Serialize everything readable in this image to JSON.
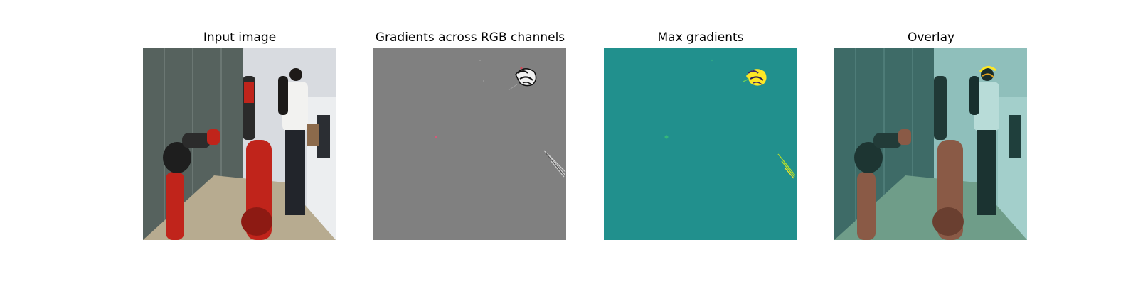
{
  "figure": {
    "panels": [
      {
        "title": "Input image",
        "content": "photo of a lab with a red robot arm and a person in a white shirt"
      },
      {
        "title": "Gradients across RGB channels",
        "content": "grey saliency map with small edge highlights"
      },
      {
        "title": "Max gradients",
        "content": "teal saliency map with yellow highlights"
      },
      {
        "title": "Overlay",
        "content": "teal-tinted input image overlaid with gradients"
      }
    ]
  },
  "colors": {
    "grad_bg": "#808080",
    "max_bg": "#21908d",
    "highlight": "#fde725",
    "robot_red": "#c0241b"
  }
}
